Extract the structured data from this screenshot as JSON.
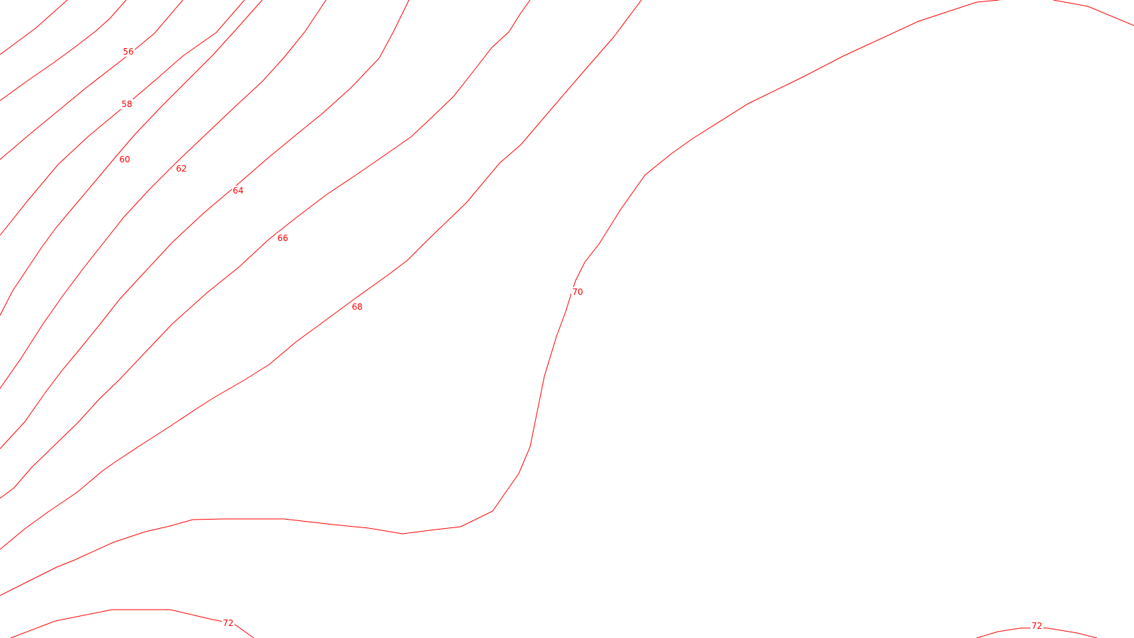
{
  "map": {
    "colors": {
      "contour": "#ff0000",
      "background": "#ffffff"
    },
    "contour_labels": [
      "56",
      "58",
      "60",
      "62",
      "64",
      "66",
      "68",
      "70",
      "72",
      "72"
    ]
  }
}
